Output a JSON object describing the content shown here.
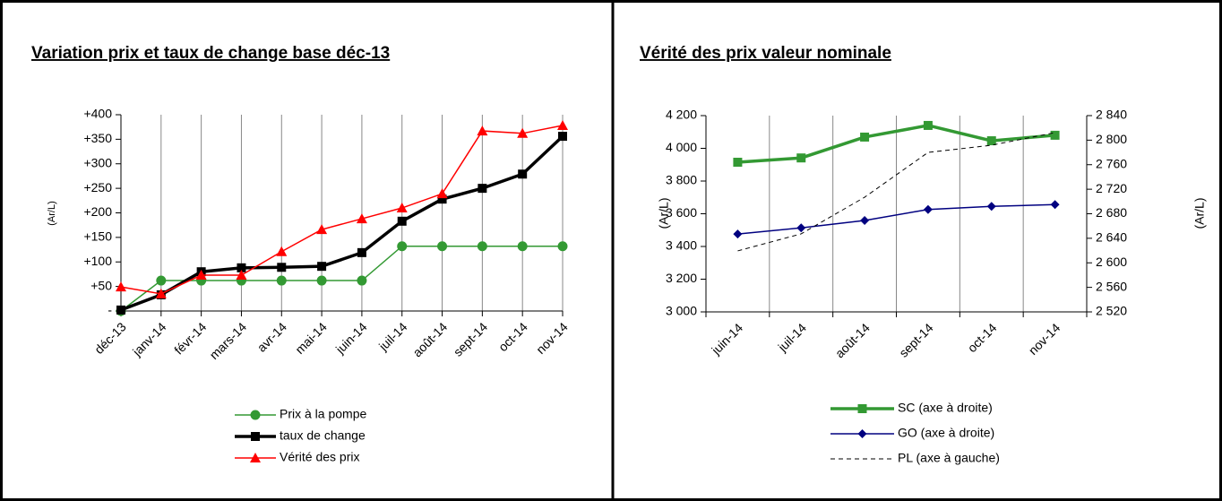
{
  "chart_data": [
    {
      "type": "line",
      "title": "Variation prix et taux de change base déc-13",
      "y_label": "(Ar/L)",
      "categories": [
        "déc-13",
        "janv-14",
        "févr-14",
        "mars-14",
        "avr-14",
        "mai-14",
        "juin-14",
        "juil-14",
        "août-14",
        "sept-14",
        "oct-14",
        "nov-14"
      ],
      "series": [
        {
          "name": "Prix à la pompe",
          "color": "#339933",
          "marker": "circle",
          "line_width": 1.5,
          "values": [
            0,
            62,
            62,
            62,
            62,
            62,
            62,
            132,
            132,
            132,
            132,
            132
          ]
        },
        {
          "name": "taux de change",
          "color": "#000000",
          "marker": "square",
          "line_width": 3.5,
          "values": [
            2,
            33,
            80,
            88,
            89,
            91,
            119,
            183,
            228,
            250,
            279,
            356
          ]
        },
        {
          "name": "Vérité des prix",
          "color": "#ff0000",
          "marker": "triangle",
          "line_width": 1.5,
          "values": [
            49,
            35,
            73,
            73,
            121,
            166,
            188,
            210,
            239,
            367,
            362,
            378
          ]
        }
      ],
      "ylim": [
        0,
        400
      ],
      "yticks": [
        {
          "value": 0,
          "label": "-"
        },
        {
          "value": 50,
          "label": "+50"
        },
        {
          "value": 100,
          "label": "+100"
        },
        {
          "value": 150,
          "label": "+150"
        },
        {
          "value": 200,
          "label": "+200"
        },
        {
          "value": 250,
          "label": "+250"
        },
        {
          "value": 300,
          "label": "+300"
        },
        {
          "value": 350,
          "label": "+350"
        },
        {
          "value": 400,
          "label": "+400"
        }
      ],
      "grid_x": true,
      "legend": "bottom"
    },
    {
      "type": "line",
      "title": "Vérité des prix valeur nominale",
      "y_label": "(Ar/L)",
      "y2_label": "(Ar/L)",
      "categories": [
        "juin-14",
        "juil-14",
        "août-14",
        "sept-14",
        "oct-14",
        "nov-14"
      ],
      "series": [
        {
          "name": "SC (axe à droite)",
          "axis": "y2",
          "color": "#339933",
          "marker": "square",
          "line_width": 3.5,
          "values": [
            2764,
            2771,
            2805,
            2824,
            2799,
            2808
          ]
        },
        {
          "name": "GO (axe à droite)",
          "axis": "y2",
          "color": "#000080",
          "marker": "diamond",
          "line_width": 1.5,
          "values": [
            2647,
            2657,
            2669,
            2687,
            2692,
            2695
          ]
        },
        {
          "name": "PL (axe à gauche)",
          "color": "#000000",
          "dashed": true,
          "line_width": 1,
          "values": [
            3373,
            3477,
            3701,
            3975,
            4019,
            4096
          ]
        }
      ],
      "ylim": [
        3000,
        4200
      ],
      "yticks": [
        {
          "value": 3000,
          "label": "3 000"
        },
        {
          "value": 3200,
          "label": "3 200"
        },
        {
          "value": 3400,
          "label": "3 400"
        },
        {
          "value": 3600,
          "label": "3 600"
        },
        {
          "value": 3800,
          "label": "3 800"
        },
        {
          "value": 4000,
          "label": "4 000"
        },
        {
          "value": 4200,
          "label": "4 200"
        }
      ],
      "y2lim": [
        2520,
        2840
      ],
      "y2ticks": [
        {
          "value": 2520,
          "label": "2 520"
        },
        {
          "value": 2560,
          "label": "2 560"
        },
        {
          "value": 2600,
          "label": "2 600"
        },
        {
          "value": 2640,
          "label": "2 640"
        },
        {
          "value": 2680,
          "label": "2 680"
        },
        {
          "value": 2720,
          "label": "2 720"
        },
        {
          "value": 2760,
          "label": "2 760"
        },
        {
          "value": 2800,
          "label": "2 800"
        },
        {
          "value": 2840,
          "label": "2 840"
        }
      ],
      "grid_x": true,
      "legend": "bottom"
    }
  ]
}
